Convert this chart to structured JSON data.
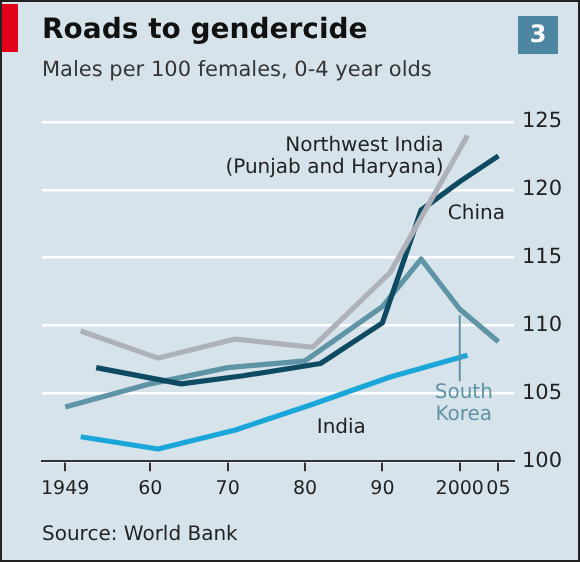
{
  "chart_data": {
    "type": "line",
    "title": "Roads to gendercide",
    "subtitle": "Males per 100 females, 0-4 year olds",
    "annotations": [
      "3",
      "Source: World Bank"
    ],
    "xlim": [
      1946,
      2007
    ],
    "xticks": [
      {
        "value": 1949,
        "label": "1949"
      },
      {
        "value": 1960,
        "label": "60"
      },
      {
        "value": 1970,
        "label": "70"
      },
      {
        "value": 1980,
        "label": "80"
      },
      {
        "value": 1990,
        "label": "90"
      },
      {
        "value": 2000,
        "label": "2000"
      },
      {
        "value": 2005,
        "label": "05"
      }
    ],
    "ylim": [
      100,
      125
    ],
    "yticks": [
      100,
      105,
      110,
      115,
      120,
      125
    ],
    "grid": "y",
    "legend": false,
    "marker": "none",
    "line_style": "solid",
    "series": [
      {
        "name": "Northwest India (Punjab and Haryana)",
        "color": "#aeb2b8",
        "x": [
          1951,
          1961,
          1971,
          1981,
          1991,
          2001
        ],
        "values": [
          109.6,
          107.6,
          109.0,
          108.4,
          113.9,
          124.0
        ]
      },
      {
        "name": "China",
        "color": "#0e4a62",
        "x": [
          1953,
          1964,
          1972,
          1982,
          1990,
          1995,
          2000,
          2005
        ],
        "values": [
          106.9,
          105.7,
          106.3,
          107.2,
          110.2,
          118.5,
          120.6,
          122.5
        ]
      },
      {
        "name": "South Korea",
        "color": "#5f93a6",
        "x": [
          1949,
          1960,
          1970,
          1980,
          1990,
          1995,
          2000,
          2005
        ],
        "values": [
          104.0,
          105.7,
          106.9,
          107.4,
          111.4,
          114.9,
          111.2,
          108.8
        ]
      },
      {
        "name": "India",
        "color": "#1ba6da",
        "x": [
          1951,
          1961,
          1971,
          1981,
          1991,
          2001
        ],
        "values": [
          101.8,
          100.9,
          102.3,
          104.2,
          106.2,
          107.8
        ]
      }
    ]
  }
}
